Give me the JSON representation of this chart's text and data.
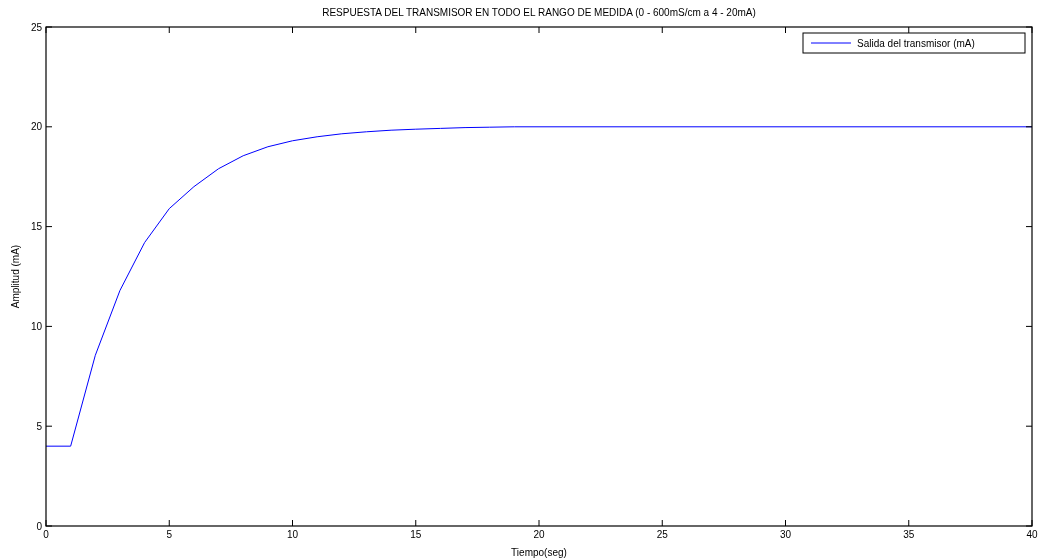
{
  "chart_data": {
    "type": "line",
    "title": "RESPUESTA DEL TRANSMISOR EN TODO EL RANGO DE MEDIDA (0 - 600mS/cm a 4 - 20mA)",
    "xlabel": "Tiempo(seg)",
    "ylabel": "Amplitud (mA)",
    "x": [
      0,
      1,
      2,
      3,
      4,
      5,
      6,
      7,
      8,
      9,
      10,
      11,
      12,
      13,
      14,
      15,
      16,
      17,
      18,
      19,
      40
    ],
    "series": [
      {
        "name": "Salida del transmisor (mA)",
        "color": "#0000ff",
        "values": [
          4,
          4,
          8.55,
          11.8,
          14.2,
          15.9,
          17.0,
          17.9,
          18.55,
          19.0,
          19.3,
          19.5,
          19.65,
          19.75,
          19.83,
          19.88,
          19.92,
          19.96,
          19.98,
          20,
          20
        ]
      }
    ],
    "xlim": [
      0,
      40
    ],
    "xticks": [
      0,
      5,
      10,
      15,
      20,
      25,
      30,
      35,
      40
    ],
    "ylim": [
      0,
      25
    ],
    "yticks": [
      0,
      5,
      10,
      15,
      20,
      25
    ],
    "grid": false,
    "legend": "top right",
    "marker": "none",
    "line_style": "solid"
  }
}
